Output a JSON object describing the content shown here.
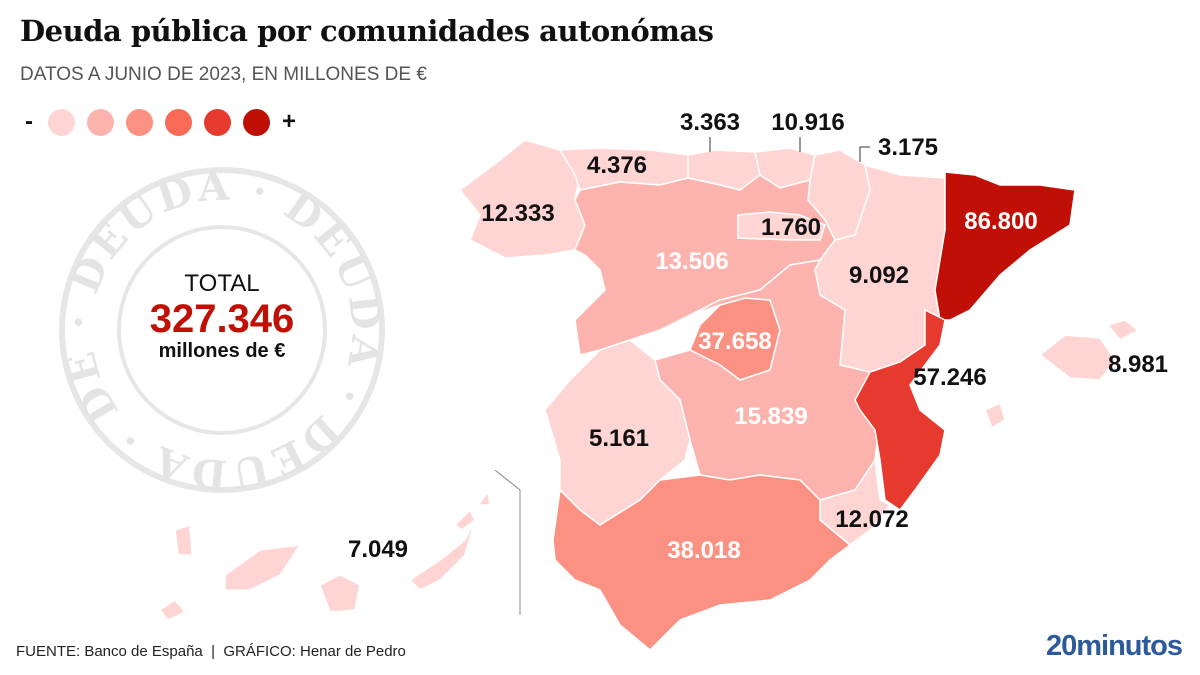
{
  "title": "Deuda pública por comunidades autonómas",
  "subtitle": "DATOS A JUNIO DE 2023, EN MILLONES DE €",
  "legend": {
    "minus": "-",
    "plus": "+",
    "colors": [
      "#ffd5d3",
      "#fdb3ad",
      "#fb9183",
      "#f96a57",
      "#e63a2e",
      "#c01006"
    ]
  },
  "stamp": {
    "text": "DEUDA"
  },
  "total": {
    "label": "TOTAL",
    "value": "327.346",
    "unit": "millones de €"
  },
  "regions": [
    {
      "id": "galicia",
      "value": "12.333"
    },
    {
      "id": "asturias",
      "value": "4.376"
    },
    {
      "id": "cantabria",
      "value": "3.363"
    },
    {
      "id": "pais-vasco",
      "value": "10.916"
    },
    {
      "id": "navarra",
      "value": "3.175"
    },
    {
      "id": "castilla-y-leon",
      "value": "13.506"
    },
    {
      "id": "la-rioja",
      "value": "1.760"
    },
    {
      "id": "aragon",
      "value": "9.092"
    },
    {
      "id": "cataluna",
      "value": "86.800"
    },
    {
      "id": "madrid",
      "value": "37.658"
    },
    {
      "id": "extremadura",
      "value": "5.161"
    },
    {
      "id": "castilla-la-mancha",
      "value": "15.839"
    },
    {
      "id": "comunidad-valenciana",
      "value": "57.246"
    },
    {
      "id": "murcia",
      "value": "12.072"
    },
    {
      "id": "andalucia",
      "value": "38.018"
    },
    {
      "id": "baleares",
      "value": "8.981"
    },
    {
      "id": "canarias",
      "value": "7.049"
    }
  ],
  "footer": "FUENTE: Banco de España  |  GRÁFICO: Henar de Pedro",
  "brand": "20minutos"
}
